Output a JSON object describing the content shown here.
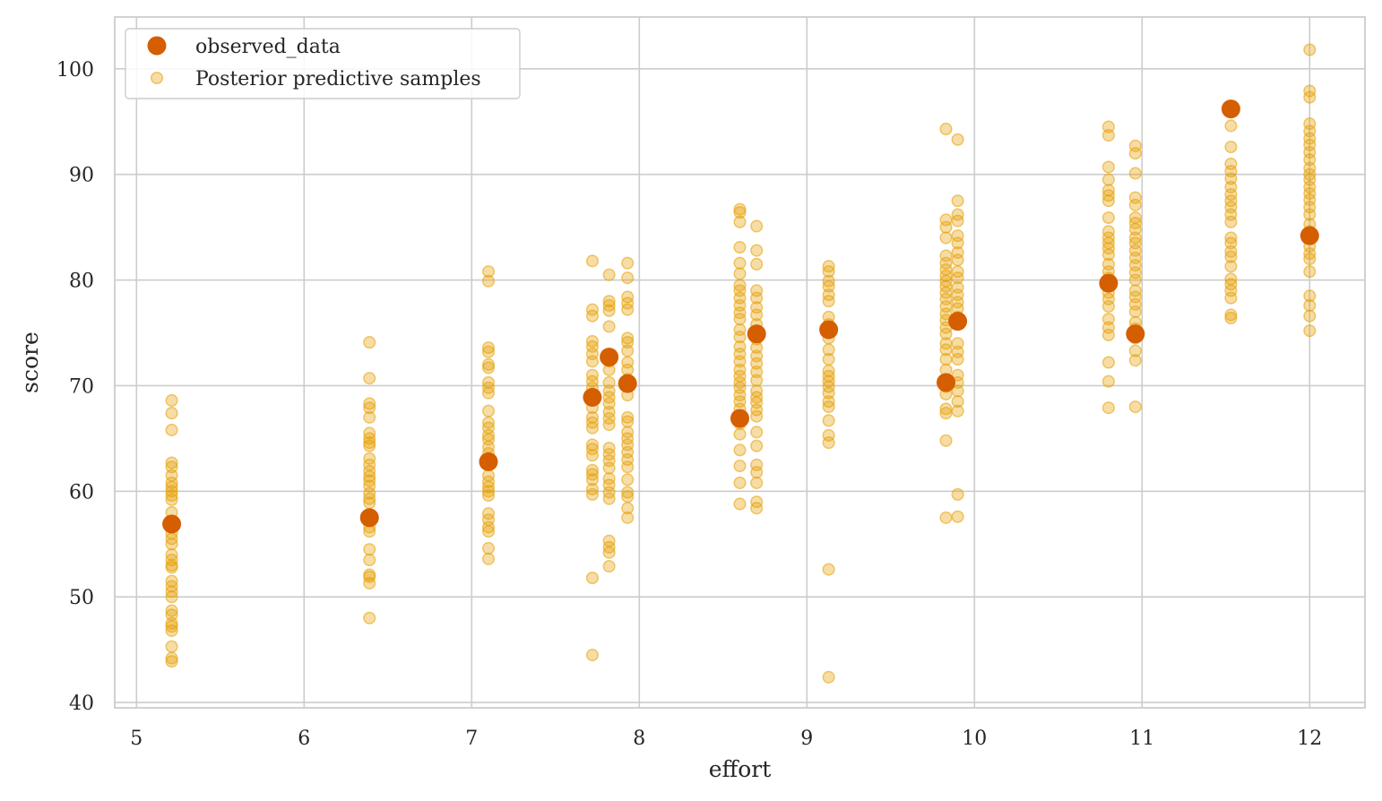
{
  "chart_data": {
    "type": "scatter",
    "xlabel": "effort",
    "ylabel": "score",
    "xlim": [
      4.87,
      12.33
    ],
    "ylim": [
      39.5,
      104.9
    ],
    "xticks": [
      5,
      6,
      7,
      8,
      9,
      10,
      11,
      12
    ],
    "yticks": [
      40,
      50,
      60,
      70,
      80,
      90,
      100
    ],
    "grid": true,
    "legend_position": "top-left",
    "colors": {
      "observed": "#d55e00",
      "posterior": "#e69f00"
    },
    "legend": [
      {
        "label": "observed_data",
        "series": "observed"
      },
      {
        "label": "Posterior predictive samples",
        "series": "posterior"
      }
    ],
    "series": [
      {
        "name": "observed_data",
        "key": "observed",
        "points": [
          [
            5.21,
            56.9
          ],
          [
            6.39,
            57.5
          ],
          [
            7.1,
            62.8
          ],
          [
            7.72,
            68.9
          ],
          [
            7.82,
            72.7
          ],
          [
            7.93,
            70.2
          ],
          [
            8.6,
            66.9
          ],
          [
            8.7,
            74.9
          ],
          [
            9.13,
            75.3
          ],
          [
            9.83,
            70.3
          ],
          [
            9.9,
            76.1
          ],
          [
            10.8,
            79.7
          ],
          [
            10.96,
            74.9
          ],
          [
            11.53,
            96.2
          ],
          [
            12.0,
            84.2
          ]
        ]
      },
      {
        "name": "Posterior predictive samples",
        "key": "posterior",
        "groups": [
          {
            "x": 5.21,
            "y": [
              68.6,
              67.4,
              65.8,
              62.7,
              62.3,
              61.5,
              60.8,
              60.4,
              60.0,
              59.6,
              59.2,
              58.0,
              57.0,
              56.0,
              55.5,
              55.0,
              54.0,
              53.5,
              53.0,
              52.8,
              51.5,
              51.0,
              50.5,
              50.0,
              48.7,
              48.3,
              47.5,
              47.2,
              46.8,
              45.3,
              44.2,
              43.9
            ]
          },
          {
            "x": 6.39,
            "y": [
              74.1,
              70.7,
              68.3,
              67.9,
              67.0,
              65.5,
              65.0,
              64.6,
              64.3,
              63.1,
              62.5,
              61.9,
              61.4,
              61.0,
              60.5,
              59.8,
              59.3,
              58.9,
              57.8,
              57.4,
              56.6,
              56.2,
              54.5,
              53.5,
              52.1,
              51.9,
              51.3,
              48.0
            ]
          },
          {
            "x": 7.1,
            "y": [
              80.8,
              79.9,
              73.6,
              73.2,
              72.0,
              71.7,
              70.3,
              69.8,
              69.3,
              67.6,
              66.5,
              66.0,
              65.3,
              64.9,
              64.2,
              63.6,
              63.1,
              62.5,
              61.5,
              60.9,
              60.4,
              60.0,
              59.6,
              57.9,
              57.3,
              56.6,
              56.2,
              54.6,
              53.6
            ]
          },
          {
            "x": 7.72,
            "y": [
              81.8,
              77.2,
              76.6,
              74.2,
              73.7,
              73.0,
              72.3,
              71.0,
              70.4,
              69.8,
              68.6,
              67.9,
              67.0,
              66.5,
              66.0,
              64.4,
              64.0,
              63.4,
              62.0,
              61.6,
              61.1,
              60.2,
              59.7,
              51.8,
              44.5
            ]
          },
          {
            "x": 7.82,
            "y": [
              80.5,
              78.0,
              77.6,
              77.1,
              75.6,
              73.0,
              72.3,
              71.5,
              70.3,
              69.5,
              68.9,
              68.3,
              67.5,
              66.9,
              66.3,
              64.1,
              63.5,
              62.9,
              62.2,
              61.2,
              60.6,
              59.9,
              59.3,
              55.3,
              54.7,
              54.2,
              52.9
            ]
          },
          {
            "x": 7.93,
            "y": [
              81.6,
              80.2,
              78.4,
              77.8,
              77.2,
              74.5,
              74.1,
              73.3,
              72.2,
              71.5,
              70.6,
              69.1,
              67.0,
              66.6,
              65.6,
              65.0,
              64.4,
              63.7,
              63.0,
              62.3,
              61.1,
              59.9,
              59.5,
              58.4,
              57.5
            ]
          },
          {
            "x": 8.6,
            "y": [
              86.7,
              86.4,
              85.5,
              83.1,
              81.6,
              80.6,
              79.5,
              79.0,
              78.3,
              77.6,
              76.9,
              76.3,
              75.3,
              74.6,
              73.7,
              73.0,
              72.3,
              71.5,
              70.9,
              70.3,
              69.8,
              69.1,
              68.5,
              67.8,
              66.4,
              65.4,
              63.9,
              62.4,
              60.8,
              58.8
            ]
          },
          {
            "x": 8.7,
            "y": [
              85.1,
              82.8,
              81.5,
              79.0,
              78.3,
              77.4,
              76.7,
              75.8,
              74.4,
              73.6,
              72.8,
              72.1,
              71.3,
              70.5,
              69.5,
              68.9,
              68.4,
              67.7,
              67.1,
              65.6,
              64.3,
              62.5,
              61.8,
              60.8,
              59.0,
              58.4
            ]
          },
          {
            "x": 9.13,
            "y": [
              81.3,
              80.8,
              79.9,
              79.4,
              78.6,
              78.0,
              76.5,
              75.8,
              74.5,
              73.4,
              72.5,
              71.4,
              70.9,
              70.4,
              69.9,
              69.3,
              68.5,
              68.0,
              66.7,
              65.3,
              64.6,
              52.6,
              42.4
            ]
          },
          {
            "x": 9.83,
            "y": [
              94.3,
              85.7,
              85.0,
              84.0,
              82.3,
              81.6,
              81.0,
              80.4,
              79.9,
              79.4,
              78.8,
              78.2,
              77.5,
              76.8,
              76.2,
              75.5,
              74.9,
              74.0,
              73.4,
              72.5,
              71.5,
              69.9,
              69.2,
              67.8,
              67.4,
              64.8,
              57.5
            ]
          },
          {
            "x": 9.9,
            "y": [
              93.3,
              87.5,
              86.2,
              85.6,
              84.2,
              83.5,
              82.6,
              81.9,
              80.8,
              80.2,
              79.3,
              78.6,
              77.9,
              77.3,
              76.5,
              75.8,
              74.0,
              73.2,
              72.5,
              71.0,
              70.3,
              69.5,
              68.5,
              67.6,
              59.7,
              57.6
            ]
          },
          {
            "x": 10.8,
            "y": [
              94.5,
              93.7,
              90.7,
              89.5,
              88.5,
              88.0,
              87.5,
              85.9,
              84.6,
              84.0,
              83.5,
              83.0,
              82.4,
              81.5,
              80.8,
              80.2,
              79.5,
              78.8,
              78.2,
              77.5,
              76.3,
              75.5,
              74.8,
              72.2,
              70.4,
              67.9
            ]
          },
          {
            "x": 10.96,
            "y": [
              92.7,
              92.0,
              90.1,
              87.8,
              87.1,
              85.9,
              85.4,
              84.8,
              84.0,
              83.5,
              82.8,
              82.1,
              81.4,
              80.7,
              80.0,
              79.0,
              78.4,
              77.7,
              77.0,
              76.0,
              75.4,
              74.5,
              73.3,
              72.4,
              68.0
            ]
          },
          {
            "x": 11.53,
            "y": [
              94.6,
              92.6,
              91.0,
              90.3,
              89.6,
              88.8,
              88.1,
              87.5,
              86.9,
              86.2,
              85.5,
              84.0,
              83.5,
              82.7,
              82.2,
              81.3,
              80.1,
              79.6,
              79.0,
              78.3,
              76.7,
              76.4
            ]
          },
          {
            "x": 12.0,
            "y": [
              101.8,
              97.9,
              97.3,
              94.8,
              94.1,
              93.4,
              92.8,
              92.1,
              91.4,
              90.6,
              90.0,
              89.5,
              88.8,
              88.2,
              87.6,
              86.9,
              86.2,
              85.3,
              84.6,
              83.9,
              83.2,
              82.5,
              82.0,
              80.8,
              78.5,
              77.6,
              76.6,
              75.2
            ]
          }
        ]
      }
    ]
  }
}
